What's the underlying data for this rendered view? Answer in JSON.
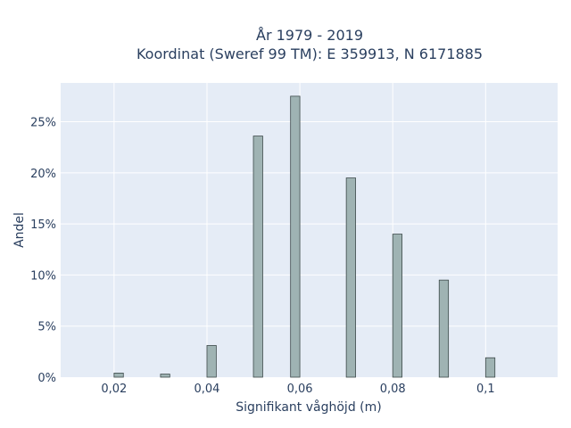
{
  "chart_data": {
    "type": "bar",
    "title": "År 1979 - 2019",
    "subtitle": "Koordinat (Sweref 99 TM): E 359913, N 6171885",
    "xlabel": "Signifikant våghöjd (m)",
    "ylabel": "Andel",
    "xlim": [
      0.0085,
      0.1155
    ],
    "ylim": [
      0,
      28.8
    ],
    "x_ticks": [
      0.02,
      0.04,
      0.06,
      0.08,
      0.1
    ],
    "x_tick_labels": [
      "0,02",
      "0,04",
      "0,06",
      "0,08",
      "0,1"
    ],
    "y_ticks": [
      0,
      5,
      10,
      15,
      20,
      25
    ],
    "y_tick_labels": [
      "0%",
      "5%",
      "10%",
      "15%",
      "20%",
      "25%"
    ],
    "x": [
      0.021,
      0.031,
      0.041,
      0.051,
      0.059,
      0.071,
      0.081,
      0.091,
      0.101
    ],
    "values": [
      0.4,
      0.3,
      3.1,
      23.6,
      27.5,
      19.5,
      14.0,
      9.5,
      1.9
    ],
    "value_unit": "%",
    "grid": true,
    "legend": "none",
    "colors": {
      "plot_bg": "#e5ecf6",
      "bar_fill": "#9fb3b3",
      "bar_stroke": "#3d4a4a",
      "text": "#2a3f5f"
    }
  }
}
